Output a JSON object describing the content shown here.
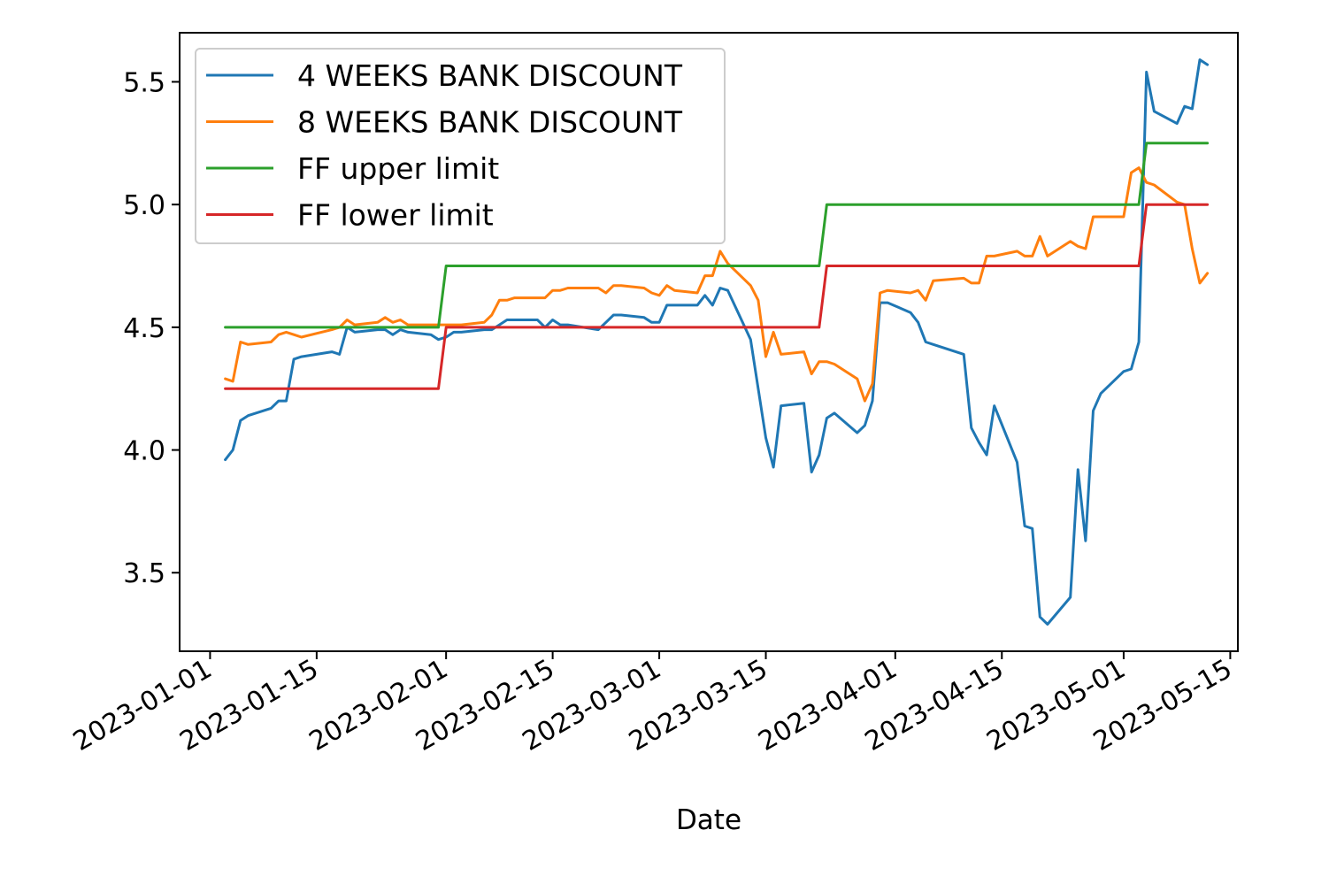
{
  "chart_data": {
    "type": "line",
    "title": "",
    "xlabel": "Date",
    "ylabel": "",
    "xlim": [
      "2022-12-28",
      "2023-05-16"
    ],
    "ylim": [
      3.18,
      5.7
    ],
    "grid": false,
    "legend_position": "top-left",
    "x_ticks": [
      "2023-01-01",
      "2023-01-15",
      "2023-02-01",
      "2023-02-15",
      "2023-03-01",
      "2023-03-15",
      "2023-04-01",
      "2023-04-15",
      "2023-05-01",
      "2023-05-15"
    ],
    "y_ticks": [
      "3.5",
      "4.0",
      "4.5",
      "5.0",
      "5.5"
    ],
    "series": [
      {
        "name": "4 WEEKS BANK DISCOUNT",
        "color": "#1f77b4",
        "x": [
          "2023-01-03",
          "2023-01-04",
          "2023-01-05",
          "2023-01-06",
          "2023-01-09",
          "2023-01-10",
          "2023-01-11",
          "2023-01-12",
          "2023-01-13",
          "2023-01-17",
          "2023-01-18",
          "2023-01-19",
          "2023-01-20",
          "2023-01-23",
          "2023-01-24",
          "2023-01-25",
          "2023-01-26",
          "2023-01-27",
          "2023-01-30",
          "2023-01-31",
          "2023-02-01",
          "2023-02-02",
          "2023-02-03",
          "2023-02-06",
          "2023-02-07",
          "2023-02-08",
          "2023-02-09",
          "2023-02-10",
          "2023-02-13",
          "2023-02-14",
          "2023-02-15",
          "2023-02-16",
          "2023-02-17",
          "2023-02-21",
          "2023-02-22",
          "2023-02-23",
          "2023-02-24",
          "2023-02-27",
          "2023-02-28",
          "2023-03-01",
          "2023-03-02",
          "2023-03-03",
          "2023-03-06",
          "2023-03-07",
          "2023-03-08",
          "2023-03-09",
          "2023-03-10",
          "2023-03-13",
          "2023-03-14",
          "2023-03-15",
          "2023-03-16",
          "2023-03-17",
          "2023-03-20",
          "2023-03-21",
          "2023-03-22",
          "2023-03-23",
          "2023-03-24",
          "2023-03-27",
          "2023-03-28",
          "2023-03-29",
          "2023-03-30",
          "2023-03-31",
          "2023-04-03",
          "2023-04-04",
          "2023-04-05",
          "2023-04-06",
          "2023-04-10",
          "2023-04-11",
          "2023-04-12",
          "2023-04-13",
          "2023-04-14",
          "2023-04-17",
          "2023-04-18",
          "2023-04-19",
          "2023-04-20",
          "2023-04-21",
          "2023-04-24",
          "2023-04-25",
          "2023-04-26",
          "2023-04-27",
          "2023-04-28",
          "2023-05-01",
          "2023-05-02",
          "2023-05-03",
          "2023-05-04",
          "2023-05-05",
          "2023-05-08",
          "2023-05-09",
          "2023-05-10",
          "2023-05-11",
          "2023-05-12"
        ],
        "values": [
          3.96,
          4.0,
          4.12,
          4.14,
          4.17,
          4.2,
          4.2,
          4.37,
          4.38,
          4.4,
          4.39,
          4.5,
          4.48,
          4.49,
          4.49,
          4.47,
          4.49,
          4.48,
          4.47,
          4.45,
          4.46,
          4.48,
          4.48,
          4.49,
          4.49,
          4.51,
          4.53,
          4.53,
          4.53,
          4.5,
          4.53,
          4.51,
          4.51,
          4.49,
          4.52,
          4.55,
          4.55,
          4.54,
          4.52,
          4.52,
          4.59,
          4.59,
          4.59,
          4.63,
          4.59,
          4.66,
          4.65,
          4.45,
          4.25,
          4.05,
          3.93,
          4.18,
          4.19,
          3.91,
          3.98,
          4.13,
          4.15,
          4.07,
          4.1,
          4.2,
          4.6,
          4.6,
          4.56,
          4.52,
          4.44,
          4.43,
          4.39,
          4.09,
          4.03,
          3.98,
          4.18,
          3.95,
          3.69,
          3.68,
          3.32,
          3.29,
          3.4,
          3.92,
          3.63,
          4.16,
          4.23,
          4.32,
          4.33,
          4.44,
          5.54,
          5.38,
          5.33,
          5.4,
          5.39,
          5.59,
          5.57
        ]
      },
      {
        "name": "8 WEEKS BANK DISCOUNT",
        "color": "#ff7f0e",
        "x": [
          "2023-01-03",
          "2023-01-04",
          "2023-01-05",
          "2023-01-06",
          "2023-01-09",
          "2023-01-10",
          "2023-01-11",
          "2023-01-12",
          "2023-01-13",
          "2023-01-17",
          "2023-01-18",
          "2023-01-19",
          "2023-01-20",
          "2023-01-23",
          "2023-01-24",
          "2023-01-25",
          "2023-01-26",
          "2023-01-27",
          "2023-01-30",
          "2023-01-31",
          "2023-02-01",
          "2023-02-02",
          "2023-02-03",
          "2023-02-06",
          "2023-02-07",
          "2023-02-08",
          "2023-02-09",
          "2023-02-10",
          "2023-02-13",
          "2023-02-14",
          "2023-02-15",
          "2023-02-16",
          "2023-02-17",
          "2023-02-21",
          "2023-02-22",
          "2023-02-23",
          "2023-02-24",
          "2023-02-27",
          "2023-02-28",
          "2023-03-01",
          "2023-03-02",
          "2023-03-03",
          "2023-03-06",
          "2023-03-07",
          "2023-03-08",
          "2023-03-09",
          "2023-03-10",
          "2023-03-13",
          "2023-03-14",
          "2023-03-15",
          "2023-03-16",
          "2023-03-17",
          "2023-03-20",
          "2023-03-21",
          "2023-03-22",
          "2023-03-23",
          "2023-03-24",
          "2023-03-27",
          "2023-03-28",
          "2023-03-29",
          "2023-03-30",
          "2023-03-31",
          "2023-04-03",
          "2023-04-04",
          "2023-04-05",
          "2023-04-06",
          "2023-04-10",
          "2023-04-11",
          "2023-04-12",
          "2023-04-13",
          "2023-04-14",
          "2023-04-17",
          "2023-04-18",
          "2023-04-19",
          "2023-04-20",
          "2023-04-21",
          "2023-04-24",
          "2023-04-25",
          "2023-04-26",
          "2023-04-27",
          "2023-04-28",
          "2023-05-01",
          "2023-05-02",
          "2023-05-03",
          "2023-05-04",
          "2023-05-05",
          "2023-05-08",
          "2023-05-09",
          "2023-05-10",
          "2023-05-11",
          "2023-05-12"
        ],
        "values": [
          4.29,
          4.28,
          4.44,
          4.43,
          4.44,
          4.47,
          4.48,
          4.47,
          4.46,
          4.49,
          4.5,
          4.53,
          4.51,
          4.52,
          4.54,
          4.52,
          4.53,
          4.51,
          4.51,
          4.51,
          4.51,
          4.51,
          4.51,
          4.52,
          4.55,
          4.61,
          4.61,
          4.62,
          4.62,
          4.62,
          4.65,
          4.65,
          4.66,
          4.66,
          4.64,
          4.67,
          4.67,
          4.66,
          4.64,
          4.63,
          4.67,
          4.65,
          4.64,
          4.71,
          4.71,
          4.81,
          4.76,
          4.67,
          4.61,
          4.38,
          4.48,
          4.39,
          4.4,
          4.31,
          4.36,
          4.36,
          4.35,
          4.29,
          4.2,
          4.27,
          4.64,
          4.65,
          4.64,
          4.65,
          4.61,
          4.69,
          4.7,
          4.68,
          4.68,
          4.79,
          4.79,
          4.81,
          4.79,
          4.79,
          4.87,
          4.79,
          4.85,
          4.83,
          4.82,
          4.95,
          4.95,
          4.95,
          5.13,
          5.15,
          5.09,
          5.08,
          5.01,
          5.0,
          4.82,
          4.68,
          4.72
        ]
      },
      {
        "name": "FF upper limit",
        "color": "#2ca02c",
        "x": [
          "2023-01-03",
          "2023-01-31",
          "2023-02-01",
          "2023-03-22",
          "2023-03-23",
          "2023-05-03",
          "2023-05-04",
          "2023-05-12"
        ],
        "values": [
          4.5,
          4.5,
          4.75,
          4.75,
          5.0,
          5.0,
          5.25,
          5.25
        ]
      },
      {
        "name": "FF lower limit",
        "color": "#d62728",
        "x": [
          "2023-01-03",
          "2023-01-31",
          "2023-02-01",
          "2023-03-22",
          "2023-03-23",
          "2023-05-03",
          "2023-05-04",
          "2023-05-12"
        ],
        "values": [
          4.25,
          4.25,
          4.5,
          4.5,
          4.75,
          4.75,
          5.0,
          5.0
        ]
      }
    ]
  }
}
